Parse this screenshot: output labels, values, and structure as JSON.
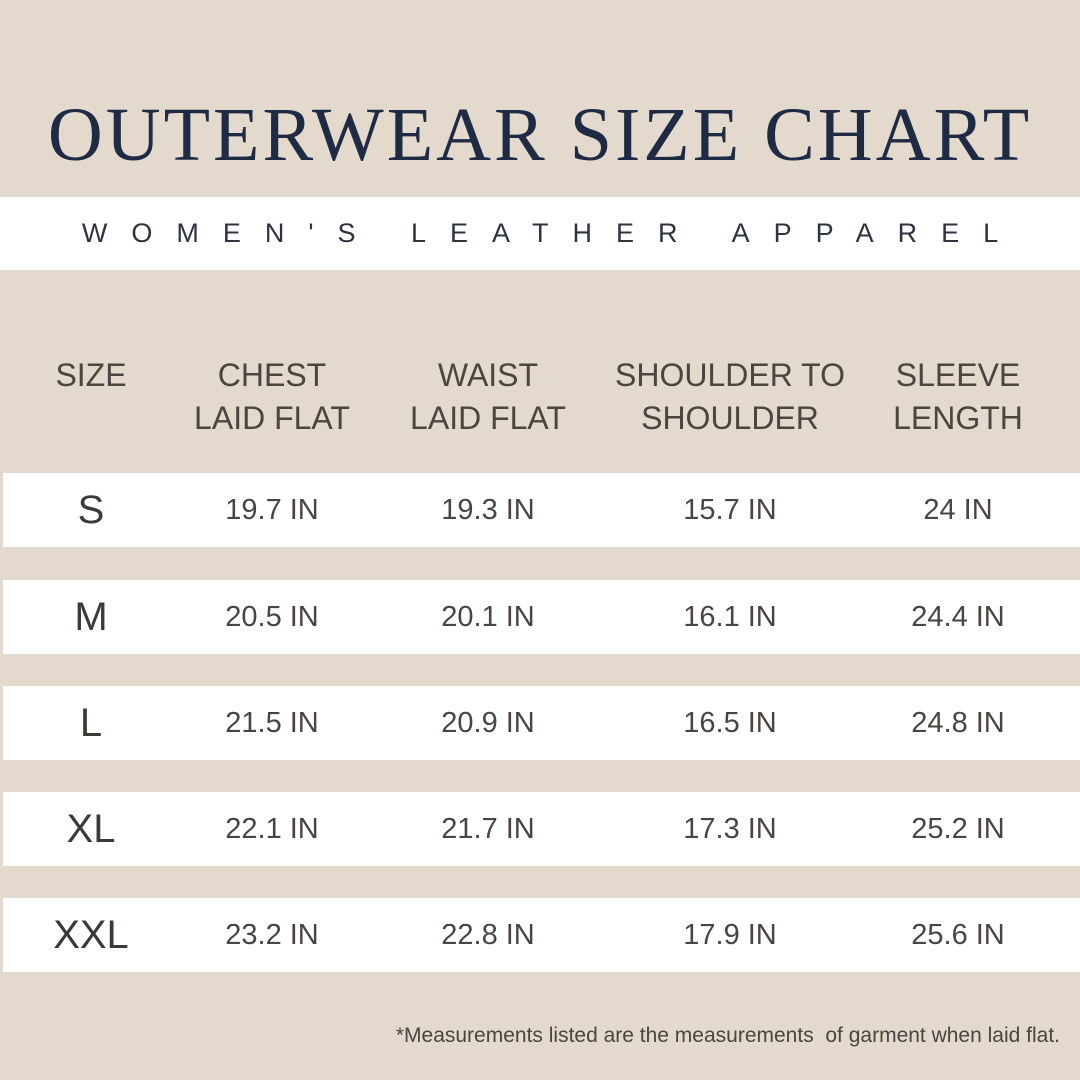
{
  "header": {
    "title": "OUTERWEAR SIZE CHART",
    "subtitle": "WOMEN'S LEATHER APPAREL"
  },
  "table": {
    "columns": [
      [
        "SIZE"
      ],
      [
        "CHEST",
        "LAID FLAT"
      ],
      [
        "WAIST",
        "LAID FLAT"
      ],
      [
        "SHOULDER TO",
        "SHOULDER"
      ],
      [
        "SLEEVE",
        "LENGTH"
      ]
    ],
    "rows": [
      [
        "S",
        "19.7 IN",
        "19.3 IN",
        "15.7 IN",
        "24 IN"
      ],
      [
        "M",
        "20.5 IN",
        "20.1 IN",
        "16.1 IN",
        "24.4 IN"
      ],
      [
        "L",
        "21.5 IN",
        "20.9 IN",
        "16.5 IN",
        "24.8 IN"
      ],
      [
        "XL",
        "22.1 IN",
        "21.7 IN",
        "17.3 IN",
        "25.2 IN"
      ],
      [
        "XXL",
        "23.2 IN",
        "22.8 IN",
        "17.9 IN",
        "25.6 IN"
      ]
    ]
  },
  "footnote": "*Measurements listed are the measurements  of garment when laid flat."
}
